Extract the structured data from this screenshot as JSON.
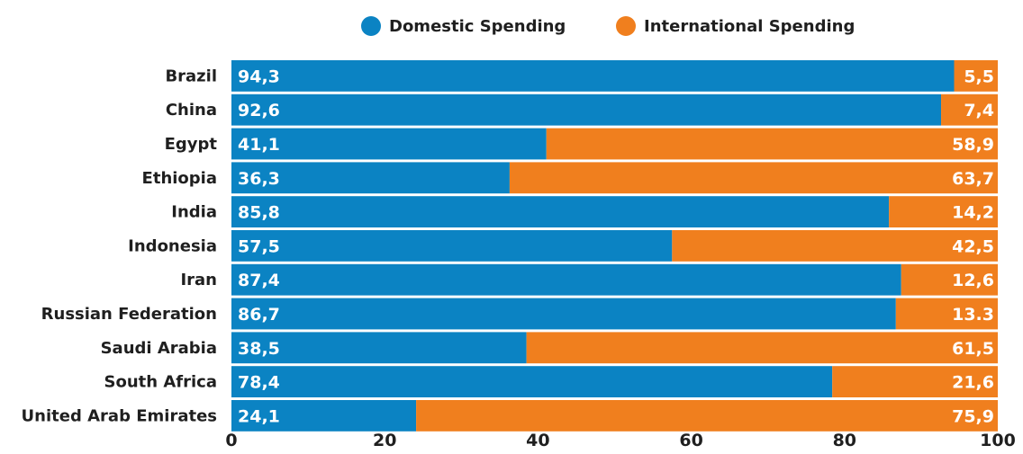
{
  "chart_data": {
    "type": "bar",
    "orientation": "horizontal",
    "stacked": true,
    "categories": [
      "Brazil",
      "China",
      "Egypt",
      "Ethiopia",
      "India",
      "Indonesia",
      "Iran",
      "Russian Federation",
      "Saudi Arabia",
      "South Africa",
      "United Arab Emirates"
    ],
    "series": [
      {
        "name": "Domestic Spending",
        "color": "#0b83c3",
        "values": [
          94.3,
          92.6,
          41.1,
          36.3,
          85.8,
          57.5,
          87.4,
          86.7,
          38.5,
          78.4,
          24.1
        ],
        "labels": [
          "94,3",
          "92,6",
          "41,1",
          "36,3",
          "85,8",
          "57,5",
          "87,4",
          "86,7",
          "38,5",
          "78,4",
          "24,1"
        ]
      },
      {
        "name": "International Spending",
        "color": "#f07f1e",
        "values": [
          5.5,
          7.4,
          58.9,
          63.7,
          14.2,
          42.5,
          12.6,
          13.3,
          61.5,
          21.6,
          75.9
        ],
        "labels": [
          "5,5",
          "7,4",
          "58,9",
          "63,7",
          "14,2",
          "42,5",
          "12,6",
          "13.3",
          "61,5",
          "21,6",
          "75,9"
        ]
      }
    ],
    "xlim": [
      0,
      100
    ],
    "xticks": [
      "0",
      "20",
      "40",
      "60",
      "80",
      "100"
    ],
    "legend_position": "top-center",
    "grid": false
  }
}
